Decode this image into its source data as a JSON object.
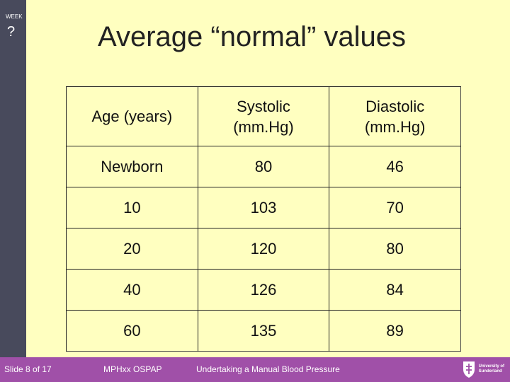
{
  "sidebar": {
    "week_label": "WEEK",
    "week_number": "?"
  },
  "title": "Average “normal” values",
  "table": {
    "headers": [
      [
        "Age (years)"
      ],
      [
        "Systolic",
        "(mm.Hg)"
      ],
      [
        "Diastolic",
        "(mm.Hg)"
      ]
    ],
    "rows": [
      [
        "Newborn",
        "80",
        "46"
      ],
      [
        "10",
        "103",
        "70"
      ],
      [
        "20",
        "120",
        "80"
      ],
      [
        "40",
        "126",
        "84"
      ],
      [
        "60",
        "135",
        "89"
      ]
    ]
  },
  "footer": {
    "slide": "Slide 8 of 17",
    "course": "MPHxx OSPAP",
    "topic": "Undertaking a Manual Blood Pressure",
    "logo_line1": "University of",
    "logo_line2": "Sunderland"
  },
  "colors": {
    "background": "#FFFFC0",
    "sidebar": "#484A5C",
    "footer": "#A050A8"
  }
}
